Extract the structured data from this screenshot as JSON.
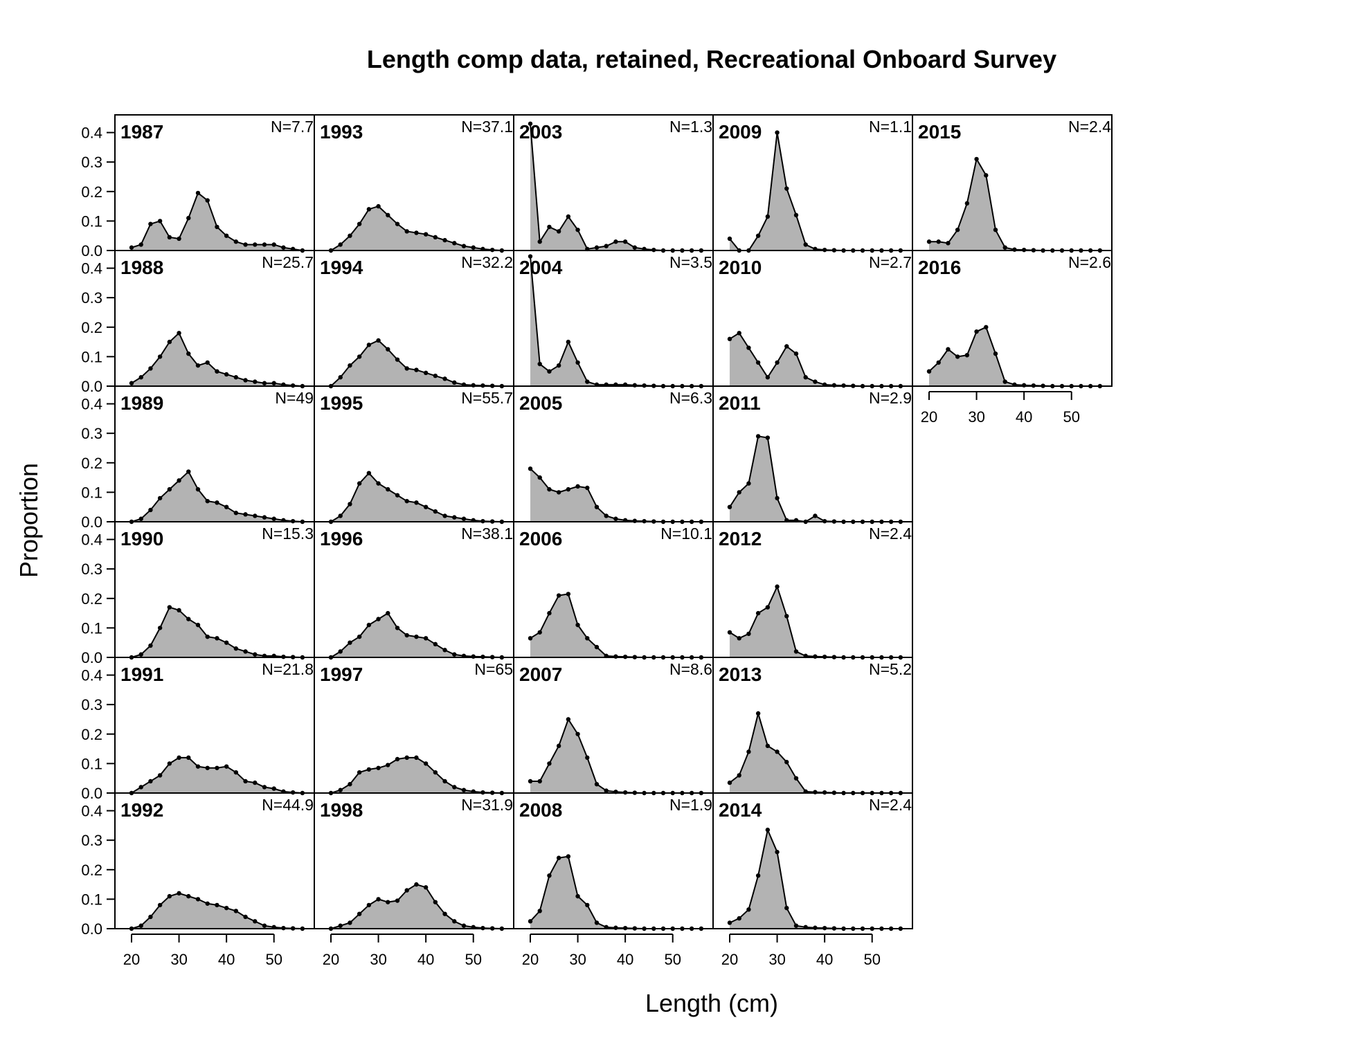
{
  "chart_data": {
    "type": "area",
    "title": "Length comp data, retained, Recreational Onboard Survey",
    "xlabel": "Length (cm)",
    "ylabel": "Proportion",
    "xlim": [
      16.5,
      58.5
    ],
    "ylim": [
      0,
      0.46
    ],
    "x_ticks": [
      20,
      30,
      40,
      50
    ],
    "y_ticks": [
      "0.0",
      "0.1",
      "0.2",
      "0.3",
      "0.4"
    ],
    "x": [
      20,
      22,
      24,
      26,
      28,
      30,
      32,
      34,
      36,
      38,
      40,
      42,
      44,
      46,
      48,
      50,
      52,
      54,
      56
    ],
    "fill_color": "#b3b3b3",
    "line_color": "#000000",
    "panels": [
      {
        "year": "1987",
        "n_label": "N=7.7",
        "values": [
          0.01,
          0.02,
          0.09,
          0.1,
          0.045,
          0.04,
          0.11,
          0.195,
          0.17,
          0.08,
          0.05,
          0.03,
          0.02,
          0.02,
          0.02,
          0.02,
          0.01,
          0.005,
          0.0
        ]
      },
      {
        "year": "1988",
        "n_label": "N=25.7",
        "values": [
          0.01,
          0.03,
          0.06,
          0.1,
          0.15,
          0.18,
          0.11,
          0.07,
          0.08,
          0.05,
          0.04,
          0.03,
          0.02,
          0.015,
          0.01,
          0.01,
          0.005,
          0.002,
          0.0
        ]
      },
      {
        "year": "1989",
        "n_label": "N=49",
        "values": [
          0.0,
          0.01,
          0.04,
          0.08,
          0.11,
          0.14,
          0.17,
          0.11,
          0.07,
          0.065,
          0.05,
          0.03,
          0.025,
          0.02,
          0.015,
          0.01,
          0.005,
          0.002,
          0.0
        ]
      },
      {
        "year": "1990",
        "n_label": "N=15.3",
        "values": [
          0.0,
          0.01,
          0.04,
          0.1,
          0.17,
          0.16,
          0.13,
          0.11,
          0.07,
          0.065,
          0.05,
          0.03,
          0.02,
          0.01,
          0.005,
          0.005,
          0.002,
          0.001,
          0.0
        ]
      },
      {
        "year": "1991",
        "n_label": "N=21.8",
        "values": [
          0.0,
          0.02,
          0.04,
          0.06,
          0.1,
          0.12,
          0.12,
          0.09,
          0.085,
          0.085,
          0.09,
          0.07,
          0.04,
          0.035,
          0.02,
          0.015,
          0.005,
          0.002,
          0.0
        ]
      },
      {
        "year": "1992",
        "n_label": "N=44.9",
        "values": [
          0.0,
          0.01,
          0.04,
          0.08,
          0.11,
          0.12,
          0.11,
          0.1,
          0.085,
          0.08,
          0.07,
          0.06,
          0.04,
          0.025,
          0.01,
          0.005,
          0.002,
          0.001,
          0.0
        ]
      },
      {
        "year": "1993",
        "n_label": "N=37.1",
        "values": [
          0.0,
          0.02,
          0.05,
          0.09,
          0.14,
          0.15,
          0.12,
          0.09,
          0.065,
          0.06,
          0.055,
          0.045,
          0.035,
          0.025,
          0.015,
          0.01,
          0.005,
          0.002,
          0.0
        ]
      },
      {
        "year": "1994",
        "n_label": "N=32.2",
        "values": [
          0.0,
          0.03,
          0.07,
          0.1,
          0.14,
          0.155,
          0.125,
          0.09,
          0.06,
          0.055,
          0.045,
          0.035,
          0.025,
          0.012,
          0.005,
          0.003,
          0.002,
          0.001,
          0.0
        ]
      },
      {
        "year": "1995",
        "n_label": "N=55.7",
        "values": [
          0.0,
          0.02,
          0.06,
          0.13,
          0.165,
          0.13,
          0.11,
          0.09,
          0.07,
          0.065,
          0.05,
          0.035,
          0.02,
          0.015,
          0.01,
          0.005,
          0.002,
          0.001,
          0.0
        ]
      },
      {
        "year": "1996",
        "n_label": "N=38.1",
        "values": [
          0.0,
          0.02,
          0.05,
          0.07,
          0.11,
          0.13,
          0.15,
          0.1,
          0.075,
          0.07,
          0.065,
          0.045,
          0.025,
          0.01,
          0.005,
          0.003,
          0.002,
          0.001,
          0.0
        ]
      },
      {
        "year": "1997",
        "n_label": "N=65",
        "values": [
          0.0,
          0.01,
          0.03,
          0.07,
          0.08,
          0.085,
          0.095,
          0.115,
          0.12,
          0.12,
          0.1,
          0.07,
          0.04,
          0.02,
          0.01,
          0.005,
          0.002,
          0.001,
          0.0
        ]
      },
      {
        "year": "1998",
        "n_label": "N=31.9",
        "values": [
          0.0,
          0.01,
          0.02,
          0.05,
          0.08,
          0.1,
          0.09,
          0.095,
          0.13,
          0.15,
          0.14,
          0.09,
          0.05,
          0.025,
          0.01,
          0.005,
          0.002,
          0.001,
          0.0
        ]
      },
      {
        "year": "2003",
        "n_label": "N=1.3",
        "values": [
          0.43,
          0.03,
          0.08,
          0.065,
          0.115,
          0.07,
          0.005,
          0.01,
          0.015,
          0.03,
          0.03,
          0.01,
          0.005,
          0.002,
          0.0,
          0.0,
          0.0,
          0.0,
          0.0
        ]
      },
      {
        "year": "2004",
        "n_label": "N=3.5",
        "values": [
          0.44,
          0.075,
          0.05,
          0.07,
          0.15,
          0.08,
          0.015,
          0.005,
          0.005,
          0.005,
          0.005,
          0.003,
          0.002,
          0.001,
          0.0,
          0.0,
          0.0,
          0.0,
          0.0
        ]
      },
      {
        "year": "2005",
        "n_label": "N=6.3",
        "values": [
          0.18,
          0.15,
          0.11,
          0.1,
          0.11,
          0.12,
          0.115,
          0.05,
          0.02,
          0.01,
          0.005,
          0.003,
          0.002,
          0.001,
          0.0,
          0.0,
          0.0,
          0.0,
          0.0
        ]
      },
      {
        "year": "2006",
        "n_label": "N=10.1",
        "values": [
          0.065,
          0.085,
          0.15,
          0.21,
          0.215,
          0.11,
          0.065,
          0.035,
          0.005,
          0.003,
          0.002,
          0.001,
          0.0,
          0.0,
          0.0,
          0.0,
          0.0,
          0.0,
          0.0
        ]
      },
      {
        "year": "2007",
        "n_label": "N=8.6",
        "values": [
          0.04,
          0.04,
          0.1,
          0.16,
          0.25,
          0.2,
          0.12,
          0.03,
          0.008,
          0.004,
          0.002,
          0.001,
          0.0,
          0.0,
          0.0,
          0.0,
          0.0,
          0.0,
          0.0
        ]
      },
      {
        "year": "2008",
        "n_label": "N=1.9",
        "values": [
          0.025,
          0.06,
          0.18,
          0.24,
          0.245,
          0.11,
          0.08,
          0.02,
          0.005,
          0.003,
          0.002,
          0.001,
          0.0,
          0.0,
          0.0,
          0.0,
          0.0,
          0.0,
          0.0
        ]
      },
      {
        "year": "2009",
        "n_label": "N=1.1",
        "values": [
          0.04,
          0.0,
          0.0,
          0.05,
          0.115,
          0.4,
          0.21,
          0.12,
          0.02,
          0.005,
          0.002,
          0.001,
          0.0,
          0.0,
          0.0,
          0.0,
          0.0,
          0.0,
          0.0
        ]
      },
      {
        "year": "2010",
        "n_label": "N=2.7",
        "values": [
          0.16,
          0.18,
          0.13,
          0.08,
          0.03,
          0.08,
          0.135,
          0.11,
          0.03,
          0.015,
          0.005,
          0.003,
          0.002,
          0.001,
          0.0,
          0.0,
          0.0,
          0.0,
          0.0
        ]
      },
      {
        "year": "2011",
        "n_label": "N=2.9",
        "values": [
          0.05,
          0.1,
          0.13,
          0.29,
          0.285,
          0.08,
          0.005,
          0.005,
          0.0,
          0.02,
          0.002,
          0.001,
          0.0,
          0.0,
          0.0,
          0.0,
          0.0,
          0.0,
          0.0
        ]
      },
      {
        "year": "2012",
        "n_label": "N=2.4",
        "values": [
          0.085,
          0.065,
          0.08,
          0.15,
          0.17,
          0.24,
          0.14,
          0.02,
          0.005,
          0.003,
          0.002,
          0.001,
          0.0,
          0.0,
          0.0,
          0.0,
          0.0,
          0.0,
          0.0
        ]
      },
      {
        "year": "2013",
        "n_label": "N=5.2",
        "values": [
          0.035,
          0.06,
          0.14,
          0.27,
          0.16,
          0.14,
          0.105,
          0.05,
          0.005,
          0.003,
          0.002,
          0.001,
          0.0,
          0.0,
          0.0,
          0.0,
          0.0,
          0.0,
          0.0
        ]
      },
      {
        "year": "2014",
        "n_label": "N=2.4",
        "values": [
          0.02,
          0.035,
          0.065,
          0.18,
          0.335,
          0.26,
          0.07,
          0.01,
          0.005,
          0.003,
          0.002,
          0.001,
          0.0,
          0.0,
          0.0,
          0.0,
          0.0,
          0.0,
          0.0
        ]
      },
      {
        "year": "2015",
        "n_label": "N=2.4",
        "values": [
          0.03,
          0.03,
          0.025,
          0.07,
          0.16,
          0.31,
          0.255,
          0.07,
          0.01,
          0.003,
          0.002,
          0.001,
          0.0,
          0.0,
          0.0,
          0.0,
          0.0,
          0.0,
          0.0
        ]
      },
      {
        "year": "2016",
        "n_label": "N=2.6",
        "values": [
          0.05,
          0.08,
          0.125,
          0.1,
          0.105,
          0.185,
          0.2,
          0.11,
          0.015,
          0.005,
          0.003,
          0.002,
          0.001,
          0.0,
          0.0,
          0.0,
          0.0,
          0.0,
          0.0
        ]
      }
    ]
  }
}
